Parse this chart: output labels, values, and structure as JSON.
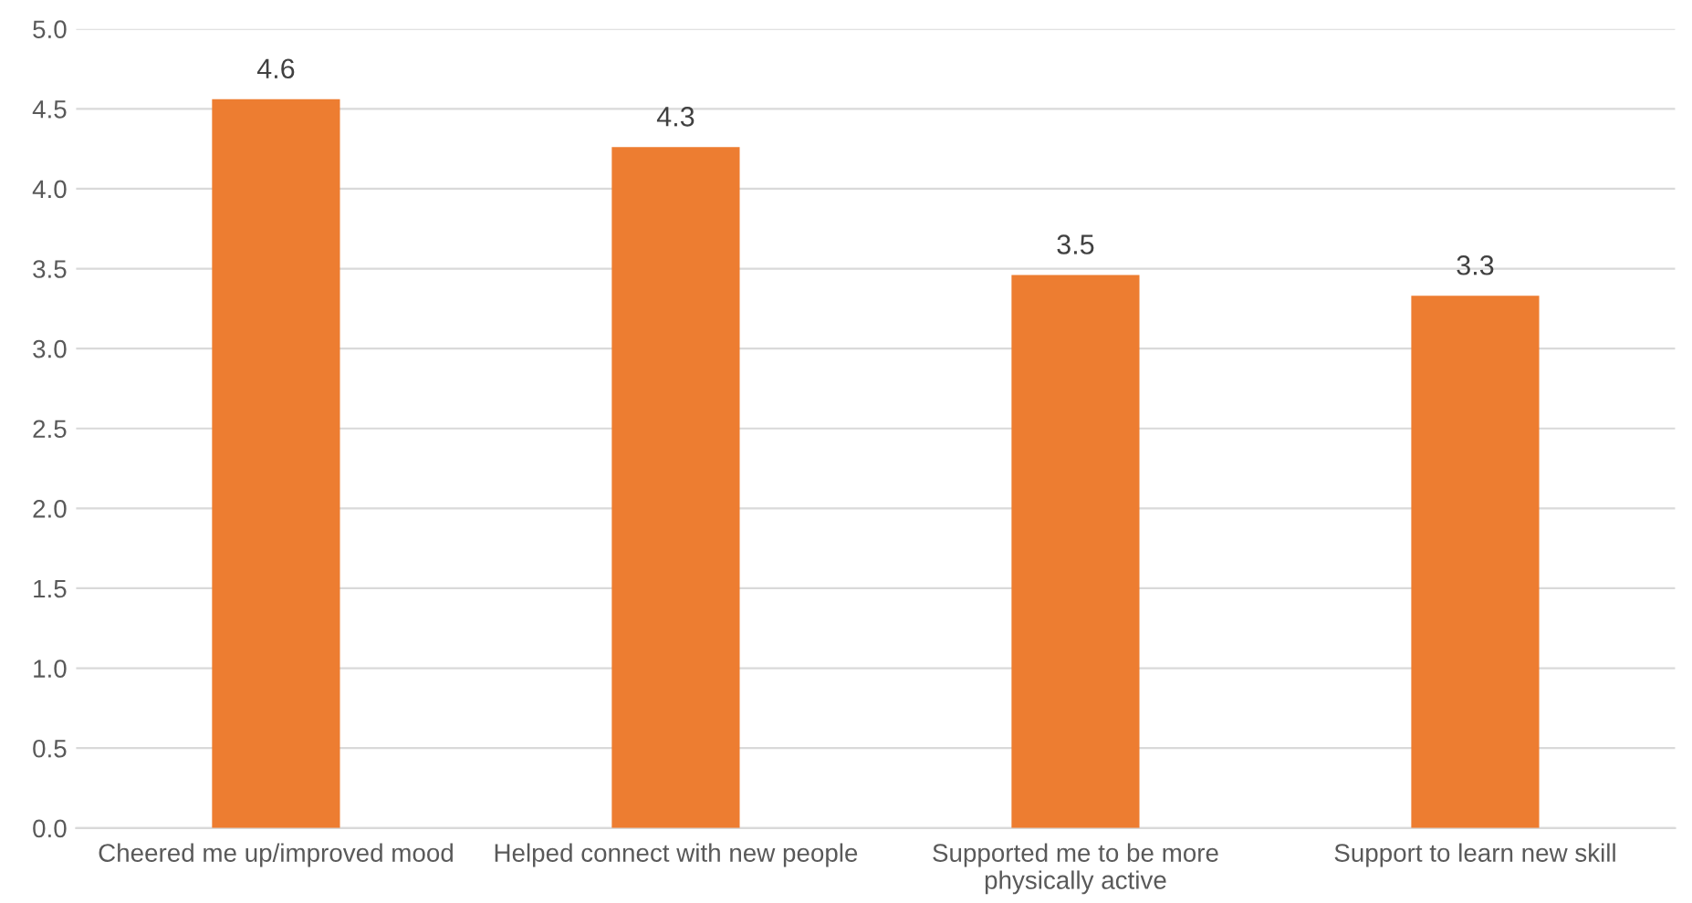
{
  "chart_data": {
    "type": "bar",
    "categories": [
      "Cheered me up/improved mood",
      "Helped connect with new people",
      "Supported me to be more\nphysically active",
      "Support to learn new skill"
    ],
    "values": [
      4.56,
      4.26,
      3.46,
      3.33
    ],
    "value_labels": [
      "4.6",
      "4.3",
      "3.5",
      "3.3"
    ],
    "color": "#ed7d31",
    "ylim": [
      0,
      5
    ],
    "yticks": [
      "0.0",
      "0.5",
      "1.0",
      "1.5",
      "2.0",
      "2.5",
      "3.0",
      "3.5",
      "4.0",
      "4.5",
      "5.0"
    ],
    "grid": "y"
  }
}
